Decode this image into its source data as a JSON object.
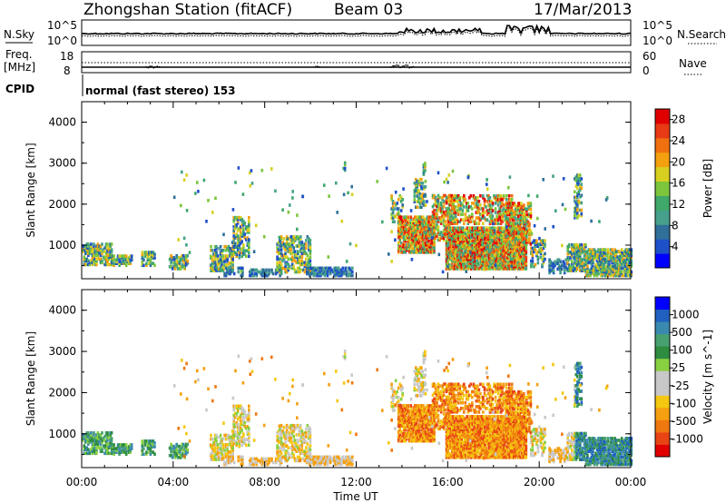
{
  "header": {
    "station": "Zhongshan Station (fitACF)",
    "beam": "Beam 03",
    "date": "17/Mar/2013",
    "cpid_label": "CPID",
    "cpid_text": "normal (fast stereo) 153",
    "nsky_label": "N.Sky",
    "nsearch_label": "N.Search",
    "freq_label": "Freq.",
    "freq_unit": "[MHz]",
    "nave_label": "Nave",
    "noise_ticks": [
      "10^5",
      "10^0"
    ],
    "freq_ticks": [
      "18",
      "8"
    ],
    "nave_ticks": [
      "60",
      "0"
    ]
  },
  "chart_data": [
    {
      "type": "heatmap",
      "name": "power",
      "ylabel": "Slant Range [km]",
      "ylim": [
        180,
        4500
      ],
      "y_ticks": [
        1000,
        2000,
        3000,
        4000
      ],
      "x_ticks": [
        "00:00",
        "04:00",
        "08:00",
        "12:00",
        "16:00",
        "20:00",
        "00:00"
      ],
      "xlabel": "Time UT",
      "colorbar": {
        "label": "Power [dB]",
        "ticks": [
          4,
          8,
          12,
          16,
          20,
          24,
          28
        ],
        "range": [
          0,
          30
        ],
        "colors": [
          "#0000ff",
          "#1e50c8",
          "#2f6f9a",
          "#46a08c",
          "#3fa86a",
          "#7dc63c",
          "#d8d020",
          "#f4a010",
          "#f07010",
          "#e83a14",
          "#e00000"
        ]
      }
    },
    {
      "type": "heatmap",
      "name": "velocity",
      "ylabel": "Slant Range [km]",
      "ylim": [
        180,
        4500
      ],
      "y_ticks": [
        1000,
        2000,
        3000,
        4000
      ],
      "x_ticks": [
        "00:00",
        "04:00",
        "08:00",
        "12:00",
        "16:00",
        "20:00",
        "00:00"
      ],
      "xlabel": "Time UT",
      "colorbar": {
        "label": "Velocity [m s^-1]",
        "ticks": [
          "1000",
          "500",
          "100",
          "25",
          "-25",
          "-100",
          "-500",
          "-1000"
        ],
        "colors": [
          "#0000ff",
          "#2060c0",
          "#3a8ab0",
          "#47a070",
          "#2e8c40",
          "#88d040",
          "#c8c8c8",
          "#c8c8c8",
          "#f4c810",
          "#f4a010",
          "#f07810",
          "#e84414",
          "#e00000"
        ]
      }
    }
  ]
}
